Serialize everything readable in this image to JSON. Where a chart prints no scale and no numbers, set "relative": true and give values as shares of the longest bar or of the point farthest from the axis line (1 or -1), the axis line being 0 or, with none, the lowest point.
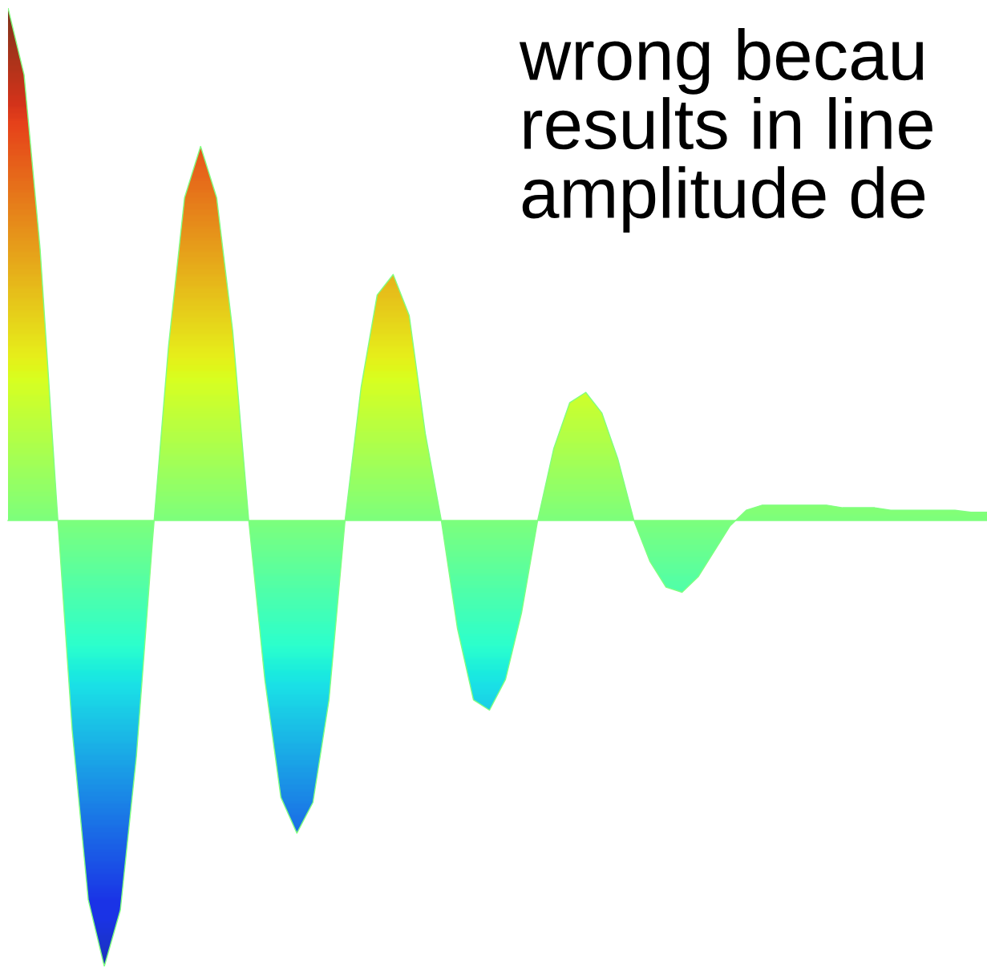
{
  "chart_data": {
    "type": "area",
    "relative": true,
    "ref_lines": [
      {
        "axis": "y",
        "value": 0,
        "color": "#80ff80"
      }
    ],
    "categories": [
      null,
      null,
      null,
      null,
      null,
      null,
      null,
      null,
      null,
      null,
      null,
      null,
      null,
      null,
      null,
      null,
      null,
      null,
      null,
      null,
      null,
      null,
      null,
      null,
      null,
      null,
      null,
      null,
      null,
      null,
      null,
      null,
      null,
      null,
      null,
      null,
      null,
      null,
      null,
      null,
      null,
      null,
      null,
      null,
      null,
      null,
      null,
      null,
      null,
      null,
      null,
      null,
      null,
      null,
      null,
      null,
      null,
      null,
      null,
      null,
      null,
      null
    ],
    "series": [
      {
        "color": "#80ff80",
        "values": [
          1.0,
          0.87,
          0.53,
          0.05,
          -0.41,
          -0.74,
          -0.87,
          -0.76,
          -0.46,
          -0.04,
          0.34,
          0.63,
          0.73,
          0.63,
          0.37,
          0,
          -0.31,
          -0.54,
          -0.61,
          -0.55,
          -0.35,
          0,
          0.26,
          0.44,
          0.48,
          0.4,
          0.17,
          0,
          -0.21,
          -0.35,
          -0.37,
          -0.31,
          -0.18,
          0,
          0.14,
          0.23,
          0.25,
          0.21,
          0.12,
          0,
          -0.08,
          -0.13,
          -0.14,
          -0.11,
          -0.06,
          -0.01,
          0.02,
          0.03,
          0.03,
          0.03,
          0.03,
          0.03,
          0.025,
          0.025,
          0.025,
          0.02,
          0.02,
          0.02,
          0.02,
          0.02,
          0.016,
          0.016
        ]
      }
    ],
    "annotations": [
      "wrong becau\nresults in line\namplitude de"
    ]
  }
}
